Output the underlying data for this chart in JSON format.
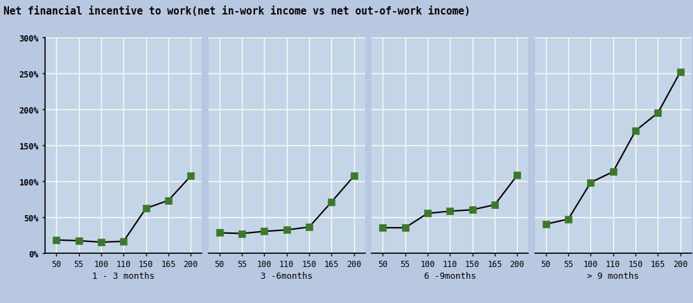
{
  "title": "Net financial incentive to work(net in-work income vs net out-of-work income)",
  "background_color": "#b8c8e0",
  "plot_bg_color": "#c5d5e8",
  "groups": [
    "1 - 3 months",
    "3 -6months",
    "6 -9months",
    "> 9 months"
  ],
  "x_labels": [
    "50",
    "55",
    "100",
    "110",
    "150",
    "165",
    "200"
  ],
  "series": {
    "1-3months": [
      18,
      17,
      15,
      16,
      62,
      73,
      107
    ],
    "3-6months": [
      28,
      27,
      30,
      32,
      36,
      71,
      107
    ],
    "6-9months": [
      35,
      35,
      55,
      58,
      60,
      67,
      108
    ],
    "9+months": [
      40,
      47,
      98,
      113,
      170,
      195,
      252
    ]
  },
  "ylim": [
    0,
    300
  ],
  "yticks": [
    0,
    50,
    100,
    150,
    200,
    250,
    300
  ],
  "ytick_labels": [
    "0%",
    "50%",
    "100%",
    "150%",
    "200%",
    "250%",
    "300%"
  ],
  "line_color": "#000000",
  "marker_color": "#3a7a28",
  "marker_size": 7,
  "title_fontsize": 10.5,
  "tick_fontsize": 8.5,
  "label_fontsize": 9
}
